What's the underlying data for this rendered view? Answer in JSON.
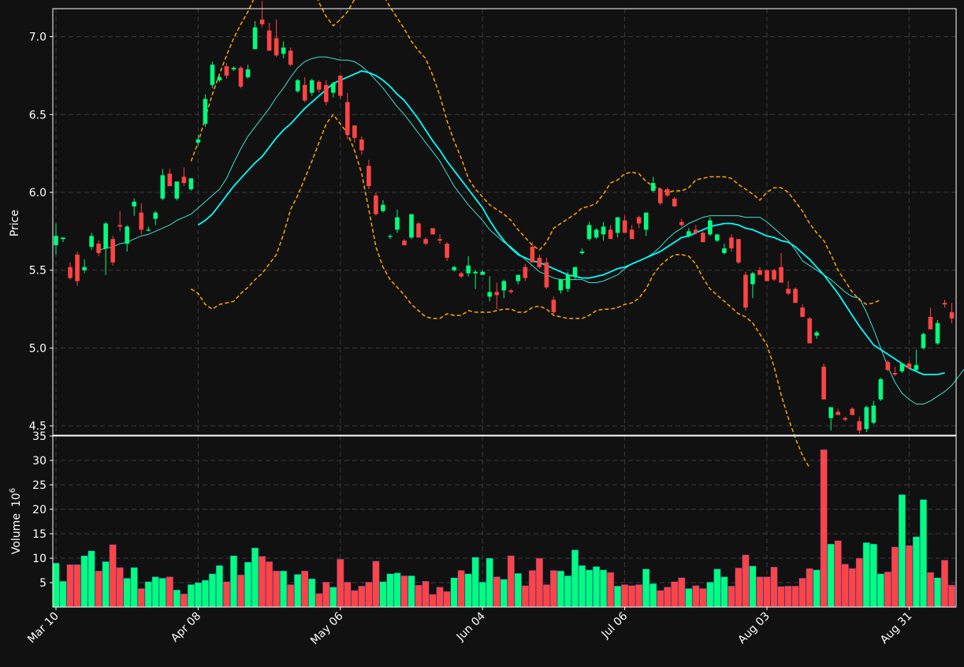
{
  "theme": {
    "background": "#111111",
    "up_color": "#00ff7f",
    "down_color": "#ff4444",
    "ma_fast_color": "#40e0d0",
    "ma_slow_color": "#00ffff",
    "band_color": "#ffa500",
    "grid_color": "#3a3a3a",
    "axis_color": "#ffffff"
  },
  "chart_data": {
    "type": "candlestick",
    "price_panel": {
      "ylabel": "Price",
      "ylim": [
        4.44,
        7.18
      ],
      "yticks": [
        "4.5",
        "5.0",
        "5.5",
        "6.0",
        "6.5",
        "7.0"
      ],
      "grid": true
    },
    "volume_panel": {
      "ylabel": "Volume",
      "ylabel_exponent": "10",
      "ylabel_exponent_power": "6",
      "ylim": [
        0,
        35
      ],
      "yticks": [
        "5",
        "10",
        "15",
        "20",
        "25",
        "30",
        "35"
      ],
      "grid": true
    },
    "x_ticks": [
      {
        "label": "Mar 10",
        "index": 0
      },
      {
        "label": "Apr 08",
        "index": 20
      },
      {
        "label": "May 06",
        "index": 40
      },
      {
        "label": "Jun 04",
        "index": 60
      },
      {
        "label": "Jul 06",
        "index": 80
      },
      {
        "label": "Aug 03",
        "index": 100
      },
      {
        "label": "Aug 31",
        "index": 120
      }
    ],
    "candles": [
      [
        5.66,
        5.8,
        5.6,
        5.72
      ],
      [
        5.7,
        5.71,
        5.68,
        5.71
      ],
      [
        5.52,
        5.55,
        5.44,
        5.45
      ],
      [
        5.6,
        5.62,
        5.4,
        5.43
      ],
      [
        5.5,
        5.57,
        5.48,
        5.52
      ],
      [
        5.65,
        5.74,
        5.63,
        5.72
      ],
      [
        5.67,
        5.69,
        5.59,
        5.61
      ],
      [
        5.64,
        5.81,
        5.47,
        5.8
      ],
      [
        5.7,
        5.72,
        5.53,
        5.55
      ],
      [
        5.79,
        5.88,
        5.75,
        5.78
      ],
      [
        5.67,
        5.79,
        5.62,
        5.78
      ],
      [
        5.91,
        5.96,
        5.85,
        5.94
      ],
      [
        5.87,
        5.93,
        5.73,
        5.76
      ],
      [
        5.76,
        5.78,
        5.75,
        5.76
      ],
      [
        5.83,
        5.88,
        5.79,
        5.87
      ],
      [
        5.96,
        6.15,
        5.95,
        6.11
      ],
      [
        6.12,
        6.15,
        6.05,
        6.04
      ],
      [
        5.96,
        6.06,
        5.95,
        6.07
      ],
      [
        6.1,
        6.16,
        6.04,
        6.06
      ],
      [
        6.02,
        6.09,
        6.01,
        6.09
      ],
      [
        6.32,
        6.37,
        6.3,
        6.34
      ],
      [
        6.44,
        6.63,
        6.42,
        6.6
      ],
      [
        6.69,
        6.84,
        6.67,
        6.82
      ],
      [
        6.72,
        6.75,
        6.71,
        6.74
      ],
      [
        6.81,
        6.83,
        6.73,
        6.75
      ],
      [
        6.79,
        6.81,
        6.78,
        6.8
      ],
      [
        6.8,
        6.81,
        6.67,
        6.68
      ],
      [
        6.74,
        6.82,
        6.73,
        6.79
      ],
      [
        6.92,
        7.1,
        6.92,
        7.06
      ],
      [
        7.11,
        7.23,
        7.06,
        7.08
      ],
      [
        7.04,
        7.09,
        6.91,
        6.91
      ],
      [
        6.99,
        7.11,
        6.87,
        6.88
      ],
      [
        6.89,
        6.97,
        6.86,
        6.93
      ],
      [
        6.91,
        6.93,
        6.81,
        6.82
      ],
      [
        6.65,
        6.73,
        6.64,
        6.72
      ],
      [
        6.69,
        6.74,
        6.58,
        6.59
      ],
      [
        6.64,
        6.73,
        6.62,
        6.72
      ],
      [
        6.71,
        6.72,
        6.64,
        6.66
      ],
      [
        6.69,
        6.72,
        6.56,
        6.58
      ],
      [
        6.64,
        6.71,
        6.61,
        6.7
      ],
      [
        6.75,
        6.75,
        6.6,
        6.62
      ],
      [
        6.58,
        6.64,
        6.34,
        6.37
      ],
      [
        6.43,
        6.43,
        6.32,
        6.35
      ],
      [
        6.34,
        6.36,
        6.24,
        6.27
      ],
      [
        6.17,
        6.21,
        6.02,
        6.04
      ],
      [
        5.98,
        6.0,
        5.85,
        5.86
      ],
      [
        5.88,
        5.95,
        5.87,
        5.92
      ],
      [
        5.72,
        5.73,
        5.7,
        5.72
      ],
      [
        5.76,
        5.89,
        5.74,
        5.84
      ],
      [
        5.69,
        5.7,
        5.66,
        5.66
      ],
      [
        5.71,
        5.86,
        5.7,
        5.86
      ],
      [
        5.8,
        5.81,
        5.71,
        5.71
      ],
      [
        5.7,
        5.71,
        5.66,
        5.67
      ],
      [
        5.77,
        5.77,
        5.73,
        5.73
      ],
      [
        5.7,
        5.73,
        5.67,
        5.69
      ],
      [
        5.67,
        5.68,
        5.56,
        5.58
      ],
      [
        5.5,
        5.53,
        5.49,
        5.52
      ],
      [
        5.48,
        5.49,
        5.45,
        5.46
      ],
      [
        5.48,
        5.59,
        5.46,
        5.53
      ],
      [
        5.48,
        5.5,
        5.38,
        5.49
      ],
      [
        5.47,
        5.5,
        5.47,
        5.49
      ],
      [
        5.33,
        5.46,
        5.3,
        5.36
      ],
      [
        5.36,
        5.42,
        5.25,
        5.34
      ],
      [
        5.37,
        5.44,
        5.32,
        5.43
      ],
      [
        5.37,
        5.38,
        5.35,
        5.36
      ],
      [
        5.43,
        5.47,
        5.41,
        5.47
      ],
      [
        5.52,
        5.54,
        5.43,
        5.45
      ],
      [
        5.65,
        5.68,
        5.55,
        5.55
      ],
      [
        5.58,
        5.6,
        5.51,
        5.52
      ],
      [
        5.55,
        5.58,
        5.38,
        5.39
      ],
      [
        5.31,
        5.33,
        5.22,
        5.23
      ],
      [
        5.37,
        5.44,
        5.35,
        5.44
      ],
      [
        5.38,
        5.49,
        5.36,
        5.47
      ],
      [
        5.46,
        5.52,
        5.44,
        5.52
      ],
      [
        5.61,
        5.64,
        5.6,
        5.62
      ],
      [
        5.7,
        5.81,
        5.69,
        5.79
      ],
      [
        5.71,
        5.77,
        5.7,
        5.76
      ],
      [
        5.73,
        5.81,
        5.69,
        5.78
      ],
      [
        5.76,
        5.79,
        5.71,
        5.7
      ],
      [
        5.74,
        5.84,
        5.71,
        5.84
      ],
      [
        5.82,
        5.85,
        5.75,
        5.74
      ],
      [
        5.76,
        5.79,
        5.7,
        5.7
      ],
      [
        5.84,
        5.85,
        5.77,
        5.8
      ],
      [
        5.76,
        5.87,
        5.72,
        5.87
      ],
      [
        6.01,
        6.1,
        6.0,
        6.06
      ],
      [
        6.02,
        6.03,
        5.92,
        5.93
      ],
      [
        6.02,
        6.03,
        5.97,
        5.98
      ],
      [
        5.96,
        5.97,
        5.91,
        5.91
      ],
      [
        5.81,
        5.83,
        5.78,
        5.79
      ],
      [
        5.72,
        5.77,
        5.71,
        5.75
      ],
      [
        5.76,
        5.79,
        5.73,
        5.74
      ],
      [
        5.74,
        5.75,
        5.68,
        5.68
      ],
      [
        5.73,
        5.84,
        5.72,
        5.82
      ],
      [
        5.69,
        5.73,
        5.68,
        5.73
      ],
      [
        5.61,
        5.67,
        5.6,
        5.64
      ],
      [
        5.71,
        5.73,
        5.62,
        5.64
      ],
      [
        5.7,
        5.7,
        5.54,
        5.55
      ],
      [
        5.47,
        5.49,
        5.24,
        5.26
      ],
      [
        5.41,
        5.49,
        5.32,
        5.48
      ],
      [
        5.5,
        5.52,
        5.47,
        5.47
      ],
      [
        5.5,
        5.5,
        5.43,
        5.43
      ],
      [
        5.5,
        5.51,
        5.43,
        5.44
      ],
      [
        5.52,
        5.61,
        5.43,
        5.42
      ],
      [
        5.38,
        5.43,
        5.34,
        5.35
      ],
      [
        5.38,
        5.39,
        5.3,
        5.29
      ],
      [
        5.26,
        5.28,
        5.2,
        5.2
      ],
      [
        5.19,
        5.2,
        5.04,
        5.03
      ],
      [
        5.08,
        5.11,
        5.06,
        5.1
      ],
      [
        4.88,
        4.9,
        4.67,
        4.67
      ],
      [
        4.55,
        4.6,
        4.47,
        4.62
      ],
      [
        4.59,
        4.61,
        4.57,
        4.57
      ],
      [
        4.55,
        4.56,
        4.53,
        4.54
      ],
      [
        4.61,
        4.62,
        4.57,
        4.57
      ],
      [
        4.53,
        4.56,
        4.45,
        4.47
      ],
      [
        4.48,
        4.63,
        4.46,
        4.62
      ],
      [
        4.52,
        4.66,
        4.51,
        4.63
      ],
      [
        4.67,
        4.81,
        4.66,
        4.8
      ],
      [
        4.91,
        4.92,
        4.85,
        4.86
      ],
      [
        4.84,
        4.88,
        4.82,
        4.83
      ],
      [
        4.85,
        4.9,
        4.84,
        4.9
      ],
      [
        4.9,
        4.92,
        4.86,
        4.87
      ],
      [
        4.86,
        4.99,
        4.85,
        4.89
      ],
      [
        5.0,
        5.1,
        4.99,
        5.09
      ],
      [
        5.2,
        5.26,
        5.12,
        5.12
      ],
      [
        5.03,
        5.18,
        5.02,
        5.16
      ],
      [
        5.29,
        5.31,
        5.26,
        5.28
      ],
      [
        5.23,
        5.29,
        5.16,
        5.19
      ]
    ],
    "volume": [
      9.0,
      5.3,
      8.7,
      8.7,
      10.5,
      11.5,
      7.4,
      9.3,
      12.8,
      8.1,
      5.9,
      8.1,
      3.8,
      5.2,
      6.2,
      5.9,
      6.2,
      3.5,
      2.7,
      4.6,
      5.0,
      5.5,
      6.8,
      8.5,
      5.2,
      10.5,
      6.6,
      9.2,
      12.1,
      10.4,
      9.3,
      7.4,
      7.4,
      4.6,
      6.7,
      7.4,
      5.8,
      2.8,
      5.1,
      4.1,
      9.8,
      5.1,
      3.4,
      4.3,
      5.1,
      9.4,
      5.2,
      6.8,
      7.0,
      6.4,
      6.4,
      4.5,
      5.3,
      2.6,
      4.1,
      3.2,
      6.0,
      7.5,
      6.8,
      10.2,
      5.1,
      10.0,
      6.2,
      5.7,
      10.5,
      6.9,
      4.4,
      7.5,
      10.0,
      4.6,
      7.5,
      7.4,
      6.4,
      11.7,
      8.5,
      7.6,
      8.3,
      7.6,
      7.1,
      4.3,
      4.6,
      4.4,
      4.6,
      7.8,
      4.8,
      3.4,
      4.1,
      5.2,
      6.0,
      3.8,
      4.4,
      3.8,
      5.1,
      7.8,
      6.2,
      4.3,
      8.0,
      10.7,
      8.4,
      6.2,
      6.2,
      8.2,
      4.2,
      4.3,
      4.3,
      5.9,
      7.9,
      7.6,
      32.2,
      12.9,
      13.6,
      8.8,
      7.9,
      10.0,
      13.2,
      12.9,
      6.8,
      7.2,
      12.3,
      23.0,
      12.6,
      14.4,
      22.0,
      7.1,
      6.0,
      9.6,
      4.5
    ],
    "series": [
      {
        "kind": "ma_fast",
        "start": 6,
        "values": [
          5.63,
          5.64,
          5.65,
          5.67,
          5.68,
          5.7,
          5.72,
          5.73,
          5.75,
          5.77,
          5.79,
          5.82,
          5.84,
          5.86,
          5.9,
          5.94,
          5.98,
          6.02,
          6.09,
          6.19,
          6.28,
          6.36,
          6.42,
          6.48,
          6.54,
          6.61,
          6.67,
          6.74,
          6.8,
          6.84,
          6.86,
          6.87,
          6.87,
          6.86,
          6.85,
          6.85,
          6.84,
          6.81,
          6.77,
          6.72,
          6.67,
          6.61,
          6.55,
          6.5,
          6.44,
          6.38,
          6.32,
          6.26,
          6.2,
          6.12,
          6.04,
          5.98,
          5.92,
          5.87,
          5.82,
          5.76,
          5.72,
          5.68,
          5.65,
          5.61,
          5.57,
          5.53,
          5.49,
          5.47,
          5.45,
          5.44,
          5.44,
          5.44,
          5.44,
          5.42,
          5.42,
          5.43,
          5.45,
          5.47,
          5.51,
          5.54,
          5.56,
          5.58,
          5.61,
          5.65,
          5.7,
          5.74,
          5.77,
          5.8,
          5.82,
          5.84,
          5.85,
          5.85,
          5.85,
          5.85,
          5.85,
          5.84,
          5.84,
          5.84,
          5.81,
          5.77,
          5.73,
          5.69,
          5.63,
          5.56,
          5.53,
          5.5,
          5.47,
          5.44,
          5.4,
          5.36,
          5.33,
          5.32,
          5.23,
          5.12,
          5.0,
          4.88,
          4.78,
          4.71,
          4.67,
          4.64,
          4.64,
          4.66,
          4.69,
          4.72,
          4.76,
          4.82,
          4.88,
          4.93,
          4.98,
          5.01
        ]
      },
      {
        "kind": "ma_slow",
        "start": 20,
        "values": [
          5.79,
          5.82,
          5.86,
          5.92,
          5.98,
          6.04,
          6.09,
          6.14,
          6.19,
          6.23,
          6.29,
          6.35,
          6.4,
          6.44,
          6.49,
          6.54,
          6.58,
          6.62,
          6.66,
          6.7,
          6.72,
          6.74,
          6.76,
          6.78,
          6.77,
          6.75,
          6.72,
          6.68,
          6.63,
          6.59,
          6.53,
          6.47,
          6.4,
          6.33,
          6.27,
          6.2,
          6.14,
          6.08,
          6.02,
          5.96,
          5.9,
          5.82,
          5.75,
          5.69,
          5.64,
          5.6,
          5.58,
          5.56,
          5.55,
          5.53,
          5.51,
          5.49,
          5.47,
          5.46,
          5.45,
          5.45,
          5.46,
          5.47,
          5.49,
          5.51,
          5.52,
          5.54,
          5.56,
          5.58,
          5.6,
          5.62,
          5.65,
          5.68,
          5.71,
          5.72,
          5.74,
          5.76,
          5.78,
          5.79,
          5.8,
          5.8,
          5.79,
          5.77,
          5.76,
          5.74,
          5.72,
          5.71,
          5.69,
          5.68,
          5.65,
          5.61,
          5.57,
          5.52,
          5.47,
          5.41,
          5.35,
          5.28,
          5.21,
          5.14,
          5.08,
          5.02,
          4.99,
          4.96,
          4.93,
          4.9,
          4.87,
          4.85,
          4.83,
          4.83,
          4.83,
          4.84
        ]
      },
      {
        "kind": "upper_band",
        "start": 19,
        "values": [
          6.2,
          6.32,
          6.48,
          6.63,
          6.76,
          6.88,
          6.99,
          7.08,
          7.16,
          7.26,
          7.35,
          7.44,
          7.52,
          7.6,
          7.58,
          7.52,
          7.43,
          7.34,
          7.22,
          7.13,
          7.07,
          7.11,
          7.16,
          7.24,
          7.34,
          7.38,
          7.34,
          7.27,
          7.19,
          7.12,
          7.05,
          6.97,
          6.91,
          6.86,
          6.75,
          6.62,
          6.46,
          6.33,
          6.22,
          6.09,
          6.02,
          5.97,
          5.92,
          5.89,
          5.86,
          5.82,
          5.76,
          5.71,
          5.66,
          5.63,
          5.68,
          5.77,
          5.8,
          5.83,
          5.86,
          5.9,
          5.91,
          5.93,
          5.99,
          6.06,
          6.08,
          6.12,
          6.13,
          6.12,
          6.07,
          6.04,
          6.02,
          6.0,
          6.01,
          6.01,
          6.03,
          6.08,
          6.09,
          6.1,
          6.1,
          6.1,
          6.09,
          6.05,
          6.02,
          5.99,
          5.95,
          6.0,
          6.03,
          6.03,
          6.0,
          5.94,
          5.88,
          5.8,
          5.74,
          5.69,
          5.6,
          5.5,
          5.43,
          5.36,
          5.31,
          5.28,
          5.29,
          5.31
        ]
      },
      {
        "kind": "lower_band",
        "start": 19,
        "values": [
          5.38,
          5.35,
          5.28,
          5.25,
          5.28,
          5.29,
          5.3,
          5.35,
          5.39,
          5.44,
          5.48,
          5.54,
          5.6,
          5.73,
          5.89,
          5.98,
          6.09,
          6.2,
          6.32,
          6.44,
          6.5,
          6.44,
          6.38,
          6.27,
          6.12,
          5.89,
          5.65,
          5.52,
          5.44,
          5.39,
          5.34,
          5.28,
          5.24,
          5.2,
          5.19,
          5.19,
          5.22,
          5.21,
          5.21,
          5.24,
          5.23,
          5.23,
          5.23,
          5.24,
          5.25,
          5.25,
          5.23,
          5.23,
          5.26,
          5.27,
          5.25,
          5.21,
          5.2,
          5.19,
          5.19,
          5.19,
          5.21,
          5.24,
          5.25,
          5.25,
          5.26,
          5.28,
          5.29,
          5.32,
          5.38,
          5.47,
          5.53,
          5.57,
          5.6,
          5.6,
          5.59,
          5.54,
          5.45,
          5.38,
          5.34,
          5.3,
          5.26,
          5.22,
          5.2,
          5.16,
          5.09,
          5.02,
          4.88,
          4.7,
          4.55,
          4.42,
          4.31,
          4.23
        ]
      }
    ]
  }
}
